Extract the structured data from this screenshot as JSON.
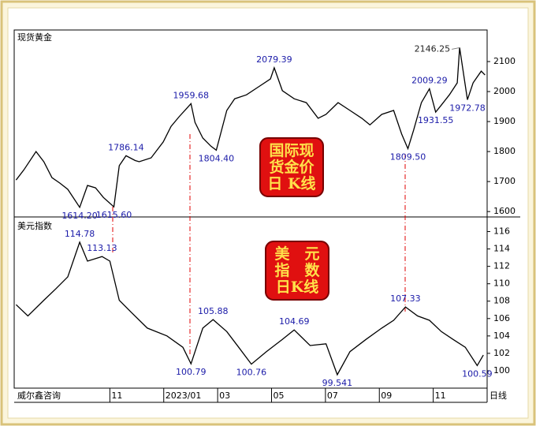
{
  "chart_data": [
    {
      "type": "line",
      "title": "现货黄金",
      "color": "#000000",
      "label_color": "#1a1aa8",
      "xlim": [
        7.45,
        25
      ],
      "ylim": [
        1582,
        2200
      ],
      "yticks": [
        1600,
        1700,
        1800,
        1900,
        2000,
        2100
      ],
      "badge": [
        "国际现",
        "货金价",
        "日 K线"
      ],
      "x": [
        7.52,
        7.81,
        8.26,
        8.55,
        8.85,
        9.14,
        9.44,
        9.88,
        10.17,
        10.47,
        10.76,
        11.15,
        11.35,
        11.6,
        11.94,
        12.09,
        12.53,
        12.98,
        13.27,
        13.57,
        14.01,
        14.16,
        14.45,
        14.75,
        14.95,
        15.34,
        15.63,
        16.07,
        16.52,
        16.96,
        17.1,
        17.4,
        17.84,
        18.29,
        18.73,
        19.02,
        19.47,
        19.91,
        20.35,
        20.65,
        21.09,
        21.53,
        21.83,
        22.06,
        22.27,
        22.56,
        22.86,
        23.09,
        23.3,
        23.6,
        23.89,
        23.98,
        24.27,
        24.48,
        24.78,
        24.92
      ],
      "values": [
        1705,
        1739,
        1800,
        1766,
        1713,
        1695,
        1674,
        1614.2,
        1687,
        1679,
        1647,
        1615.6,
        1753,
        1786.14,
        1770,
        1766,
        1779,
        1832,
        1884,
        1916,
        1959.68,
        1897,
        1845,
        1818,
        1804.4,
        1937,
        1976,
        1989,
        2016,
        2042,
        2079.39,
        2003,
        1976,
        1963,
        1911,
        1924,
        1963,
        1937,
        1911,
        1889,
        1924,
        1937,
        1858,
        1809.5,
        1871,
        1963,
        2009.29,
        1931.55,
        1955,
        1989,
        2029,
        2146.25,
        1972.78,
        2029,
        2068,
        2055
      ],
      "value_labels": [
        null,
        null,
        null,
        null,
        null,
        null,
        null,
        "1614.20",
        null,
        null,
        null,
        "1615.60",
        null,
        "1786.14",
        null,
        null,
        null,
        null,
        null,
        null,
        "1959.68",
        null,
        null,
        null,
        "1804.40",
        null,
        null,
        null,
        null,
        null,
        "2079.39",
        null,
        null,
        null,
        null,
        null,
        null,
        null,
        null,
        null,
        null,
        null,
        null,
        "1809.50",
        null,
        null,
        "2009.29",
        "1931.55",
        null,
        null,
        null,
        "2146.25",
        "1972.78",
        null,
        null,
        null
      ]
    },
    {
      "type": "line",
      "title": "美元指数",
      "color": "#000000",
      "label_color": "#1a1aa8",
      "xlim": [
        7.45,
        25
      ],
      "ylim": [
        98,
        117.5
      ],
      "yticks": [
        100,
        102,
        104,
        106,
        108,
        110,
        112,
        114,
        116
      ],
      "xticks": [
        {
          "value": 11,
          "label": "11"
        },
        {
          "value": 13,
          "label": "2023/01"
        },
        {
          "value": 15,
          "label": "03"
        },
        {
          "value": 17,
          "label": "05"
        },
        {
          "value": 19,
          "label": "07"
        },
        {
          "value": 21,
          "label": "09"
        },
        {
          "value": 23,
          "label": "11"
        }
      ],
      "badge": [
        "美　元",
        "指　数",
        "日K线"
      ],
      "x": [
        7.52,
        7.96,
        8.55,
        8.99,
        9.44,
        9.88,
        10.17,
        10.71,
        11.0,
        11.35,
        11.8,
        12.39,
        13.12,
        13.71,
        14.01,
        14.45,
        14.83,
        15.34,
        15.78,
        16.25,
        16.81,
        17.4,
        17.84,
        18.43,
        19.02,
        19.44,
        19.91,
        20.5,
        21.09,
        21.53,
        21.97,
        22.42,
        22.86,
        23.3,
        23.74,
        24.19,
        24.63,
        24.86
      ],
      "values": [
        107.6,
        106.3,
        108.1,
        109.4,
        110.8,
        114.78,
        112.6,
        113.13,
        112.6,
        108.1,
        106.7,
        104.9,
        104.0,
        102.7,
        100.79,
        104.9,
        105.88,
        104.5,
        102.7,
        100.76,
        102.2,
        103.6,
        104.69,
        102.9,
        103.1,
        99.541,
        102.2,
        103.6,
        104.9,
        105.8,
        107.33,
        106.3,
        105.8,
        104.5,
        103.6,
        102.7,
        100.59,
        101.8
      ],
      "value_labels": [
        null,
        null,
        null,
        null,
        null,
        "114.78",
        null,
        "113.13",
        null,
        null,
        null,
        null,
        null,
        null,
        "100.79",
        null,
        "105.88",
        null,
        null,
        "100.76",
        null,
        null,
        "104.69",
        null,
        null,
        "99.541",
        null,
        null,
        null,
        null,
        "107.33",
        null,
        null,
        null,
        null,
        null,
        "100.59",
        null
      ]
    }
  ],
  "footer": {
    "brand": "威尔鑫咨询",
    "period": "日线"
  }
}
